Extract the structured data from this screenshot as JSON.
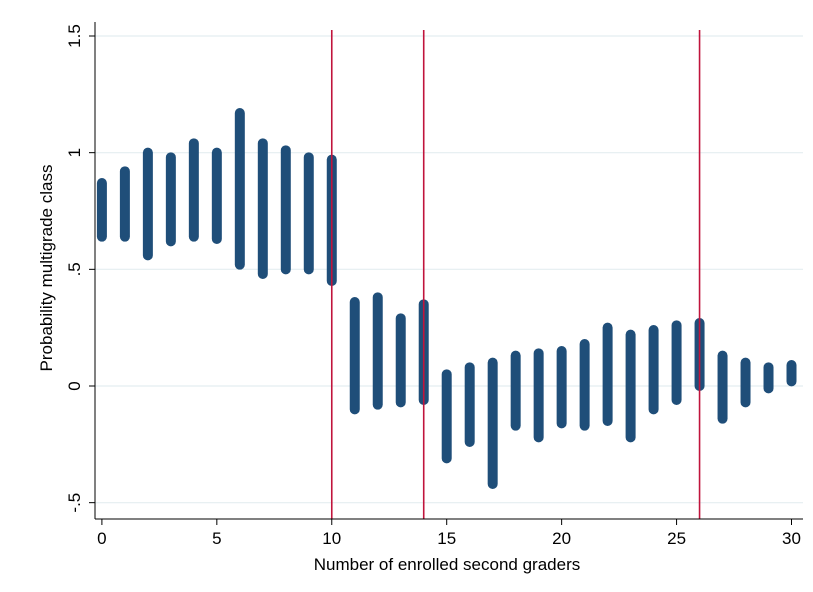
{
  "chart_data": {
    "type": "scatter",
    "xlabel": "Number of enrolled second graders",
    "ylabel": "Probability multigrade class",
    "xlim": [
      -0.3,
      30.5
    ],
    "ylim": [
      -0.57,
      1.56
    ],
    "xticks": [
      0,
      5,
      10,
      15,
      20,
      25,
      30
    ],
    "yticks": [
      -0.5,
      0,
      0.5,
      1,
      1.5
    ],
    "ytick_labels": [
      "-.5",
      "0",
      ".5",
      "1",
      "1.5"
    ],
    "grid": true,
    "legend": "none",
    "marker_color": "#1f4e79",
    "reference_lines": {
      "x": [
        10,
        14,
        26
      ],
      "color": "#c0143c"
    },
    "series": [
      {
        "values": [
          {
            "x": 0,
            "min": 0.64,
            "max": 0.87
          },
          {
            "x": 1,
            "min": 0.64,
            "max": 0.92
          },
          {
            "x": 2,
            "min": 0.56,
            "max": 1.0
          },
          {
            "x": 3,
            "min": 0.62,
            "max": 0.98
          },
          {
            "x": 4,
            "min": 0.64,
            "max": 1.04
          },
          {
            "x": 5,
            "min": 0.63,
            "max": 1.0
          },
          {
            "x": 6,
            "min": 0.52,
            "max": 1.17
          },
          {
            "x": 7,
            "min": 0.48,
            "max": 1.04
          },
          {
            "x": 8,
            "min": 0.5,
            "max": 1.01
          },
          {
            "x": 9,
            "min": 0.5,
            "max": 0.98
          },
          {
            "x": 10,
            "min": 0.45,
            "max": 0.97
          },
          {
            "x": 11,
            "min": -0.1,
            "max": 0.36
          },
          {
            "x": 12,
            "min": -0.08,
            "max": 0.38
          },
          {
            "x": 13,
            "min": -0.07,
            "max": 0.29
          },
          {
            "x": 14,
            "min": -0.06,
            "max": 0.35
          },
          {
            "x": 15,
            "min": -0.31,
            "max": 0.05
          },
          {
            "x": 16,
            "min": -0.24,
            "max": 0.08
          },
          {
            "x": 17,
            "min": -0.42,
            "max": 0.1
          },
          {
            "x": 18,
            "min": -0.17,
            "max": 0.13
          },
          {
            "x": 19,
            "min": -0.22,
            "max": 0.14
          },
          {
            "x": 20,
            "min": -0.16,
            "max": 0.15
          },
          {
            "x": 21,
            "min": -0.17,
            "max": 0.18
          },
          {
            "x": 22,
            "min": -0.15,
            "max": 0.25
          },
          {
            "x": 23,
            "min": -0.22,
            "max": 0.22
          },
          {
            "x": 24,
            "min": -0.1,
            "max": 0.24
          },
          {
            "x": 25,
            "min": -0.06,
            "max": 0.26
          },
          {
            "x": 26,
            "min": 0.0,
            "max": 0.27
          },
          {
            "x": 27,
            "min": -0.14,
            "max": 0.13
          },
          {
            "x": 28,
            "min": -0.07,
            "max": 0.1
          },
          {
            "x": 29,
            "min": -0.01,
            "max": 0.08
          },
          {
            "x": 30,
            "min": 0.02,
            "max": 0.09
          }
        ]
      }
    ]
  }
}
